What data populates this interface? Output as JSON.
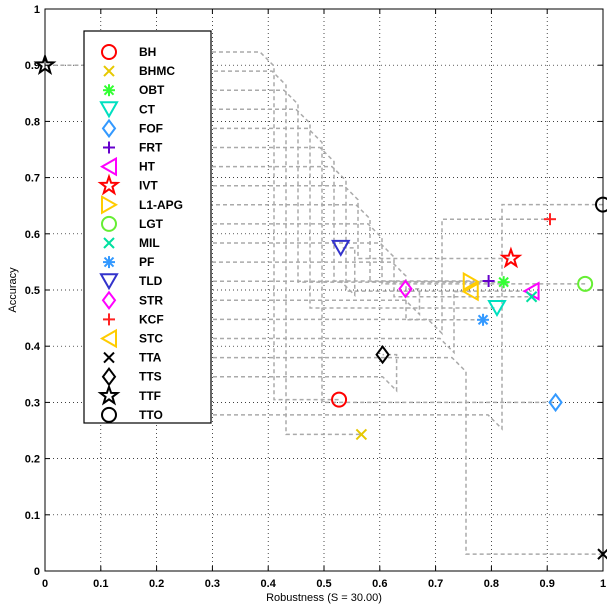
{
  "chart_data": {
    "type": "scatter",
    "xlabel": "Robustness (S = 30.00)",
    "ylabel": "Accuracy",
    "xlim": [
      0,
      1
    ],
    "ylim": [
      0,
      1
    ],
    "x_ticks": [
      "0",
      "0.1",
      "0.2",
      "0.3",
      "0.4",
      "0.5",
      "0.6",
      "0.7",
      "0.8",
      "0.9",
      "1"
    ],
    "y_ticks": [
      "0",
      "0.1",
      "0.2",
      "0.3",
      "0.4",
      "0.5",
      "0.6",
      "0.7",
      "0.8",
      "0.9",
      "1"
    ],
    "grid": true,
    "legend_position": "top-left",
    "series": [
      {
        "name": "BH",
        "marker": "circle",
        "color": "#ff0000",
        "x": 0.527,
        "y": 0.305
      },
      {
        "name": "BHMC",
        "marker": "x",
        "color": "#e6c800",
        "x": 0.567,
        "y": 0.243
      },
      {
        "name": "OBT",
        "marker": "asterisk",
        "color": "#33ff33",
        "x": 0.822,
        "y": 0.514
      },
      {
        "name": "CT",
        "marker": "triangle-down",
        "color": "#00e0c0",
        "x": 0.81,
        "y": 0.468
      },
      {
        "name": "FOF",
        "marker": "diamond",
        "color": "#3399ff",
        "x": 0.915,
        "y": 0.3
      },
      {
        "name": "FRT",
        "marker": "plus",
        "color": "#6600cc",
        "x": 0.795,
        "y": 0.516
      },
      {
        "name": "HT",
        "marker": "triangle-left",
        "color": "#ff00ff",
        "x": 0.872,
        "y": 0.498
      },
      {
        "name": "IVT",
        "marker": "star5",
        "color": "#ff0000",
        "x": 0.835,
        "y": 0.556
      },
      {
        "name": "L1-APG",
        "marker": "triangle-right",
        "color": "#ffcc00",
        "x": 0.763,
        "y": 0.515
      },
      {
        "name": "LGT",
        "marker": "circle",
        "color": "#66ee33",
        "x": 0.968,
        "y": 0.511
      },
      {
        "name": "MIL",
        "marker": "x",
        "color": "#00e0a0",
        "x": 0.872,
        "y": 0.488
      },
      {
        "name": "PF",
        "marker": "asterisk",
        "color": "#3399ff",
        "x": 0.785,
        "y": 0.447
      },
      {
        "name": "TLD",
        "marker": "triangle-down",
        "color": "#3333cc",
        "x": 0.53,
        "y": 0.575
      },
      {
        "name": "STR",
        "marker": "diamond",
        "color": "#ff00ff",
        "x": 0.646,
        "y": 0.502
      },
      {
        "name": "KCF",
        "marker": "plus",
        "color": "#ff2222",
        "x": 0.905,
        "y": 0.626
      },
      {
        "name": "STC",
        "marker": "triangle-left",
        "color": "#ffcc00",
        "x": 0.763,
        "y": 0.497
      },
      {
        "name": "TTA",
        "marker": "x",
        "color": "#000000",
        "x": 1.0,
        "y": 0.03
      },
      {
        "name": "TTS",
        "marker": "diamond",
        "color": "#000000",
        "x": 0.605,
        "y": 0.385
      },
      {
        "name": "TTF",
        "marker": "star5",
        "color": "#000000",
        "x": 0.0,
        "y": 0.9
      },
      {
        "name": "TTO",
        "marker": "circle",
        "color": "#000000",
        "x": 1.0,
        "y": 0.652
      }
    ]
  }
}
